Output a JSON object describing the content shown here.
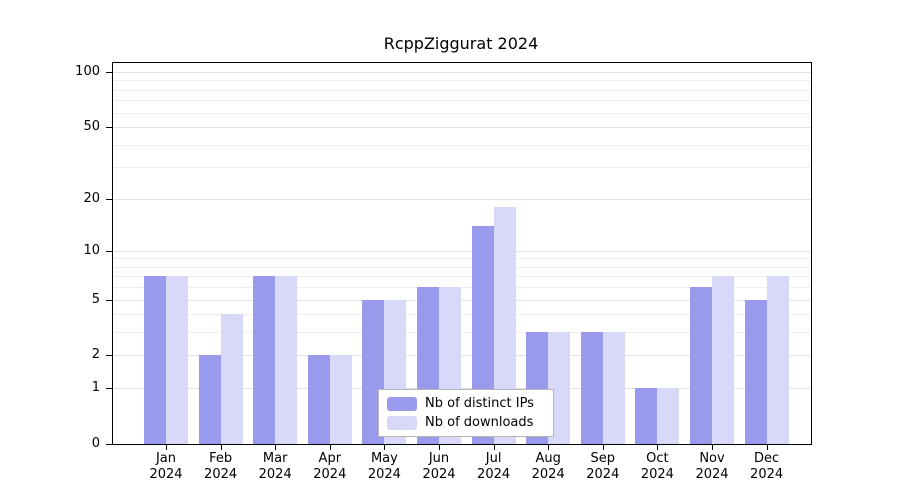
{
  "title": "RcppZiggurat 2024",
  "legend": {
    "items": [
      {
        "label": "Nb of distinct IPs",
        "color": "#9a9aec"
      },
      {
        "label": "Nb of downloads",
        "color": "#d8d8f8"
      }
    ]
  },
  "axes": {
    "y_ticks": [
      {
        "label": "100",
        "value": 100
      },
      {
        "label": "50",
        "value": 50
      },
      {
        "label": "20",
        "value": 20
      },
      {
        "label": "10",
        "value": 10
      },
      {
        "label": "5",
        "value": 5
      },
      {
        "label": "2",
        "value": 2
      },
      {
        "label": "1",
        "value": 1
      },
      {
        "label": "0",
        "value": 0
      }
    ],
    "minor_grid": [
      3,
      4,
      6,
      7,
      8,
      9,
      30,
      40,
      60,
      70,
      80,
      90
    ],
    "x_labels": [
      {
        "month": "Jan",
        "year": "2024"
      },
      {
        "month": "Feb",
        "year": "2024"
      },
      {
        "month": "Mar",
        "year": "2024"
      },
      {
        "month": "Apr",
        "year": "2024"
      },
      {
        "month": "May",
        "year": "2024"
      },
      {
        "month": "Jun",
        "year": "2024"
      },
      {
        "month": "Jul",
        "year": "2024"
      },
      {
        "month": "Aug",
        "year": "2024"
      },
      {
        "month": "Sep",
        "year": "2024"
      },
      {
        "month": "Oct",
        "year": "2024"
      },
      {
        "month": "Nov",
        "year": "2024"
      },
      {
        "month": "Dec",
        "year": "2024"
      }
    ]
  },
  "chart_data": {
    "type": "bar",
    "title": "RcppZiggurat 2024",
    "scale": "log1p",
    "categories": [
      "Jan 2024",
      "Feb 2024",
      "Mar 2024",
      "Apr 2024",
      "May 2024",
      "Jun 2024",
      "Jul 2024",
      "Aug 2024",
      "Sep 2024",
      "Oct 2024",
      "Nov 2024",
      "Dec 2024"
    ],
    "series": [
      {
        "name": "Nb of distinct IPs",
        "color": "#9a9aec",
        "values": [
          7,
          2,
          7,
          2,
          5,
          6,
          14,
          3,
          3,
          1,
          6,
          5
        ]
      },
      {
        "name": "Nb of downloads",
        "color": "#d8d8f8",
        "values": [
          7,
          4,
          7,
          2,
          5,
          6,
          18,
          3,
          3,
          1,
          7,
          7
        ]
      }
    ],
    "ylim": [
      0,
      100
    ],
    "grid": true,
    "legend_position": "inside-bottom-center"
  }
}
